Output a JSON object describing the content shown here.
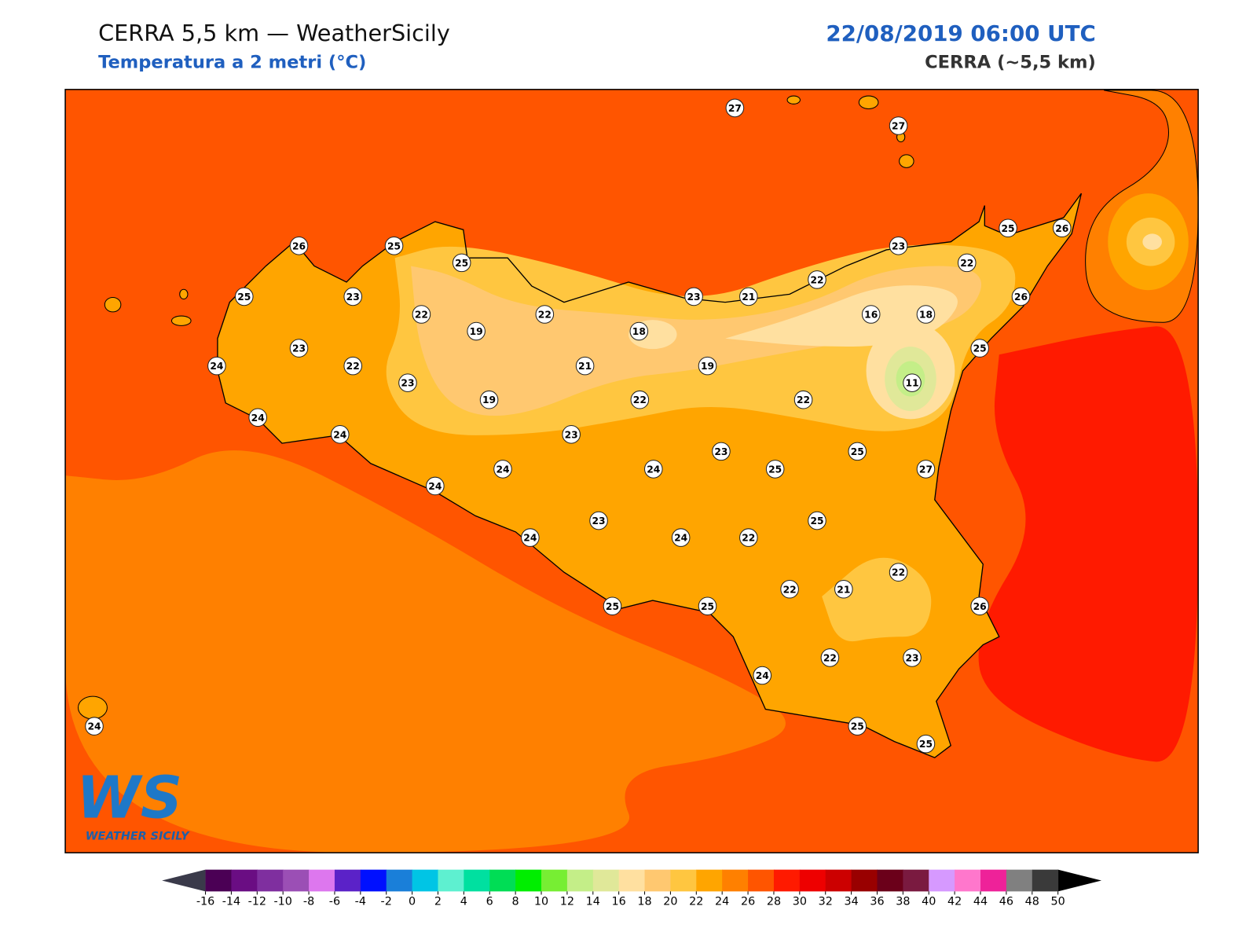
{
  "header": {
    "title": "CERRA 5,5 km — WeatherSicily",
    "subtitle": "Temperatura a 2 metri (°C)",
    "date": "22/08/2019 06:00 UTC",
    "model": "CERRA (~5,5 km)"
  },
  "logo": {
    "mark": "WS",
    "name": "WEATHER SICILY"
  },
  "stations": [
    27,
    27,
    26,
    25,
    25,
    25,
    23,
    22,
    19,
    22,
    18,
    23,
    21,
    22,
    23,
    22,
    25,
    26,
    26,
    16,
    18,
    25,
    11,
    23,
    24,
    22,
    23,
    21,
    19,
    19,
    22,
    22,
    24,
    24,
    23,
    23,
    25,
    24,
    24,
    25,
    27,
    24,
    23,
    25,
    24,
    24,
    22,
    22,
    22,
    21,
    25,
    25,
    26,
    22,
    23,
    24,
    25,
    25,
    24
  ],
  "colorbar": {
    "ticks": [
      -16,
      -14,
      -12,
      -10,
      -8,
      -6,
      -4,
      -2,
      0,
      2,
      4,
      6,
      8,
      10,
      12,
      14,
      16,
      18,
      20,
      22,
      24,
      26,
      28,
      30,
      32,
      34,
      36,
      38,
      40,
      42,
      44,
      46,
      48,
      50
    ],
    "colors": [
      "#4b0055",
      "#6a0d83",
      "#7f2f9f",
      "#9b4fb5",
      "#dd77ee",
      "#5b22c8",
      "#0010ff",
      "#1a7fd9",
      "#00c5e5",
      "#5ef0d0",
      "#00e0a0",
      "#00dd55",
      "#00ee00",
      "#77ee33",
      "#c4ee88",
      "#e0e899",
      "#ffe0a0",
      "#ffc870",
      "#ffc640",
      "#ffa500",
      "#ff8000",
      "#ff5500",
      "#ff1a00",
      "#ee0000",
      "#cc0000",
      "#990000",
      "#6b001a",
      "#7a1a40",
      "#d699ff",
      "#ff77cc",
      "#ee2299",
      "#808080",
      "#3a3a3a"
    ],
    "under_color": "#3a3a4a",
    "over_color": "#000000"
  }
}
